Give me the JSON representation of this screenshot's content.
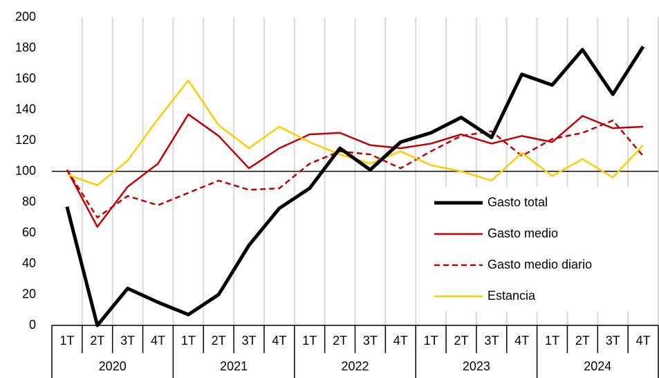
{
  "chart_data": {
    "type": "line",
    "categories": [
      "1T",
      "2T",
      "3T",
      "4T",
      "1T",
      "2T",
      "3T",
      "4T",
      "1T",
      "2T",
      "3T",
      "4T",
      "1T",
      "2T",
      "3T",
      "4T",
      "1T",
      "2T",
      "3T",
      "4T"
    ],
    "groups": [
      "2020",
      "2021",
      "2022",
      "2023",
      "2024"
    ],
    "series": [
      {
        "name": "Gasto total",
        "color": "#000000",
        "width": 5,
        "dashed": false,
        "values": [
          77,
          0,
          24,
          15,
          7,
          20,
          52,
          76,
          89,
          115,
          101,
          119,
          125,
          135,
          122,
          163,
          156,
          179,
          150,
          181
        ]
      },
      {
        "name": "Gasto medio",
        "color": "#c00000",
        "width": 2.5,
        "dashed": false,
        "values": [
          101,
          64,
          90,
          105,
          137,
          123,
          102,
          115,
          124,
          125,
          117,
          115,
          118,
          124,
          118,
          123,
          119,
          136,
          128,
          129
        ]
      },
      {
        "name": "Gasto medio diario",
        "color": "#c00000",
        "width": 2.5,
        "dashed": true,
        "values": [
          101,
          70,
          84,
          78,
          86,
          94,
          88,
          89,
          105,
          113,
          111,
          102,
          113,
          123,
          126,
          110,
          121,
          125,
          133,
          110
        ]
      },
      {
        "name": "Estancia",
        "color": "#ffcc00",
        "width": 2.5,
        "dashed": false,
        "values": [
          98,
          91,
          107,
          134,
          159,
          130,
          115,
          129,
          119,
          111,
          105,
          113,
          104,
          100,
          94,
          112,
          97,
          108,
          96,
          117
        ]
      }
    ],
    "ylim": [
      0,
      200
    ],
    "yticks": [
      0,
      20,
      40,
      60,
      80,
      100,
      120,
      140,
      160,
      180,
      200
    ],
    "reference_line": 100,
    "vertical_grid": true,
    "legend": "lower right"
  }
}
